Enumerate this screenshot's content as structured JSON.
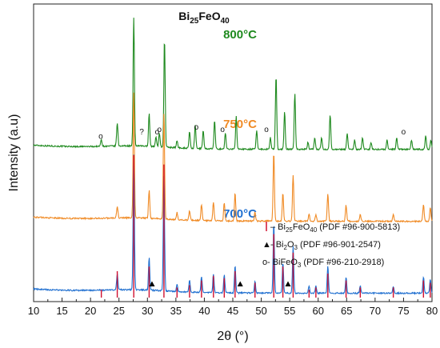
{
  "chart_data": {
    "type": "line",
    "title": "Bi25FeO40",
    "title_parts": {
      "base": "Bi",
      "sub1": "25",
      "mid": "FeO",
      "sub2": "40"
    },
    "xlabel": "2θ (°)",
    "ylabel": "Intensity (a.u)",
    "xlim": [
      10,
      80
    ],
    "x_ticks": [
      "10",
      "15",
      "20",
      "25",
      "30",
      "35",
      "40",
      "45",
      "50",
      "55",
      "60",
      "65",
      "70",
      "75",
      "80"
    ],
    "grid": false,
    "colors": {
      "800": "#1f8a1f",
      "750": "#f08a24",
      "700": "#1f6fd0",
      "reference": "#d01030"
    },
    "series": [
      {
        "label": "800°C",
        "offset": 0.62,
        "peaks": [
          [
            21.9,
            0.03
          ],
          [
            24.7,
            0.1
          ],
          [
            27.6,
            0.55
          ],
          [
            30.3,
            0.14
          ],
          [
            31.5,
            0.04
          ],
          [
            32.1,
            0.06
          ],
          [
            33.0,
            0.47
          ],
          [
            35.2,
            0.03
          ],
          [
            37.4,
            0.07
          ],
          [
            38.4,
            0.1
          ],
          [
            39.8,
            0.08
          ],
          [
            41.8,
            0.12
          ],
          [
            43.7,
            0.07
          ],
          [
            45.6,
            0.14
          ],
          [
            49.2,
            0.08
          ],
          [
            51.6,
            0.05
          ],
          [
            52.6,
            0.32
          ],
          [
            54.1,
            0.16
          ],
          [
            55.9,
            0.24
          ],
          [
            58.2,
            0.03
          ],
          [
            59.4,
            0.05
          ],
          [
            60.6,
            0.05
          ],
          [
            62.1,
            0.15
          ],
          [
            65.1,
            0.07
          ],
          [
            66.4,
            0.04
          ],
          [
            67.8,
            0.05
          ],
          [
            69.3,
            0.03
          ],
          [
            72.1,
            0.04
          ],
          [
            73.8,
            0.05
          ],
          [
            76.4,
            0.04
          ],
          [
            78.9,
            0.06
          ],
          [
            79.8,
            0.04
          ]
        ]
      },
      {
        "label": "750°C",
        "offset": 0.31,
        "peaks": [
          [
            24.7,
            0.05
          ],
          [
            27.6,
            0.54
          ],
          [
            30.3,
            0.12
          ],
          [
            32.9,
            0.46
          ],
          [
            35.2,
            0.03
          ],
          [
            37.4,
            0.04
          ],
          [
            39.5,
            0.07
          ],
          [
            41.6,
            0.08
          ],
          [
            43.5,
            0.08
          ],
          [
            45.4,
            0.12
          ],
          [
            48.9,
            0.04
          ],
          [
            52.2,
            0.3
          ],
          [
            53.8,
            0.12
          ],
          [
            55.6,
            0.2
          ],
          [
            58.4,
            0.03
          ],
          [
            59.6,
            0.03
          ],
          [
            61.7,
            0.12
          ],
          [
            64.9,
            0.07
          ],
          [
            67.4,
            0.03
          ],
          [
            73.2,
            0.03
          ],
          [
            78.5,
            0.07
          ],
          [
            79.7,
            0.06
          ]
        ]
      },
      {
        "label": "700°C",
        "offset": 0.0,
        "peaks": [
          [
            24.7,
            0.07
          ],
          [
            27.6,
            0.58
          ],
          [
            30.3,
            0.14
          ],
          [
            32.9,
            0.5
          ],
          [
            35.2,
            0.03
          ],
          [
            37.4,
            0.05
          ],
          [
            39.5,
            0.07
          ],
          [
            41.6,
            0.08
          ],
          [
            43.5,
            0.08
          ],
          [
            45.4,
            0.12
          ],
          [
            48.9,
            0.05
          ],
          [
            52.2,
            0.3
          ],
          [
            53.8,
            0.13
          ],
          [
            55.6,
            0.2
          ],
          [
            58.4,
            0.03
          ],
          [
            59.6,
            0.03
          ],
          [
            61.7,
            0.12
          ],
          [
            64.9,
            0.07
          ],
          [
            67.4,
            0.03
          ],
          [
            73.2,
            0.03
          ],
          [
            78.5,
            0.07
          ],
          [
            79.7,
            0.06
          ]
        ]
      }
    ],
    "reference_lines": [
      [
        21.9,
        0.02
      ],
      [
        24.7,
        0.1
      ],
      [
        27.6,
        0.6
      ],
      [
        30.3,
        0.12
      ],
      [
        32.9,
        0.56
      ],
      [
        35.2,
        0.03
      ],
      [
        37.4,
        0.04
      ],
      [
        39.5,
        0.06
      ],
      [
        41.6,
        0.08
      ],
      [
        43.5,
        0.07
      ],
      [
        45.4,
        0.1
      ],
      [
        48.9,
        0.05
      ],
      [
        52.2,
        0.26
      ],
      [
        53.8,
        0.12
      ],
      [
        55.6,
        0.18
      ],
      [
        58.4,
        0.02
      ],
      [
        59.6,
        0.03
      ],
      [
        61.7,
        0.09
      ],
      [
        64.9,
        0.06
      ],
      [
        67.4,
        0.03
      ],
      [
        73.2,
        0.03
      ],
      [
        78.5,
        0.06
      ],
      [
        79.7,
        0.05
      ]
    ],
    "triangle_markers_x": [
      30.8,
      46.3,
      54.7
    ],
    "circle_markers": [
      [
        21.8,
        0.03
      ],
      [
        31.7,
        0.05
      ],
      [
        32.1,
        0.06
      ],
      [
        38.6,
        0.07
      ],
      [
        43.2,
        0.06
      ],
      [
        50.9,
        0.06
      ],
      [
        75.0,
        0.05
      ]
    ],
    "question_marker_x": 29.0,
    "legend": [
      {
        "symbol": "|",
        "text_prefix": "– Bi",
        "sub1": "25",
        "mid": "FeO",
        "sub2": "40",
        "suffix": " (PDF #96-900-5813)"
      },
      {
        "symbol": "▲",
        "text": " -  Bi",
        "sub1": "2",
        "mid": "O",
        "sub2": "3",
        "suffix": " (PDF #96-901-2547)"
      },
      {
        "symbol": "o",
        "text": " - BiFeO",
        "sub1": "3",
        "suffix": " (PDF #96-210-2918)"
      }
    ],
    "question_mark_text": "?",
    "circle_text": "o"
  }
}
